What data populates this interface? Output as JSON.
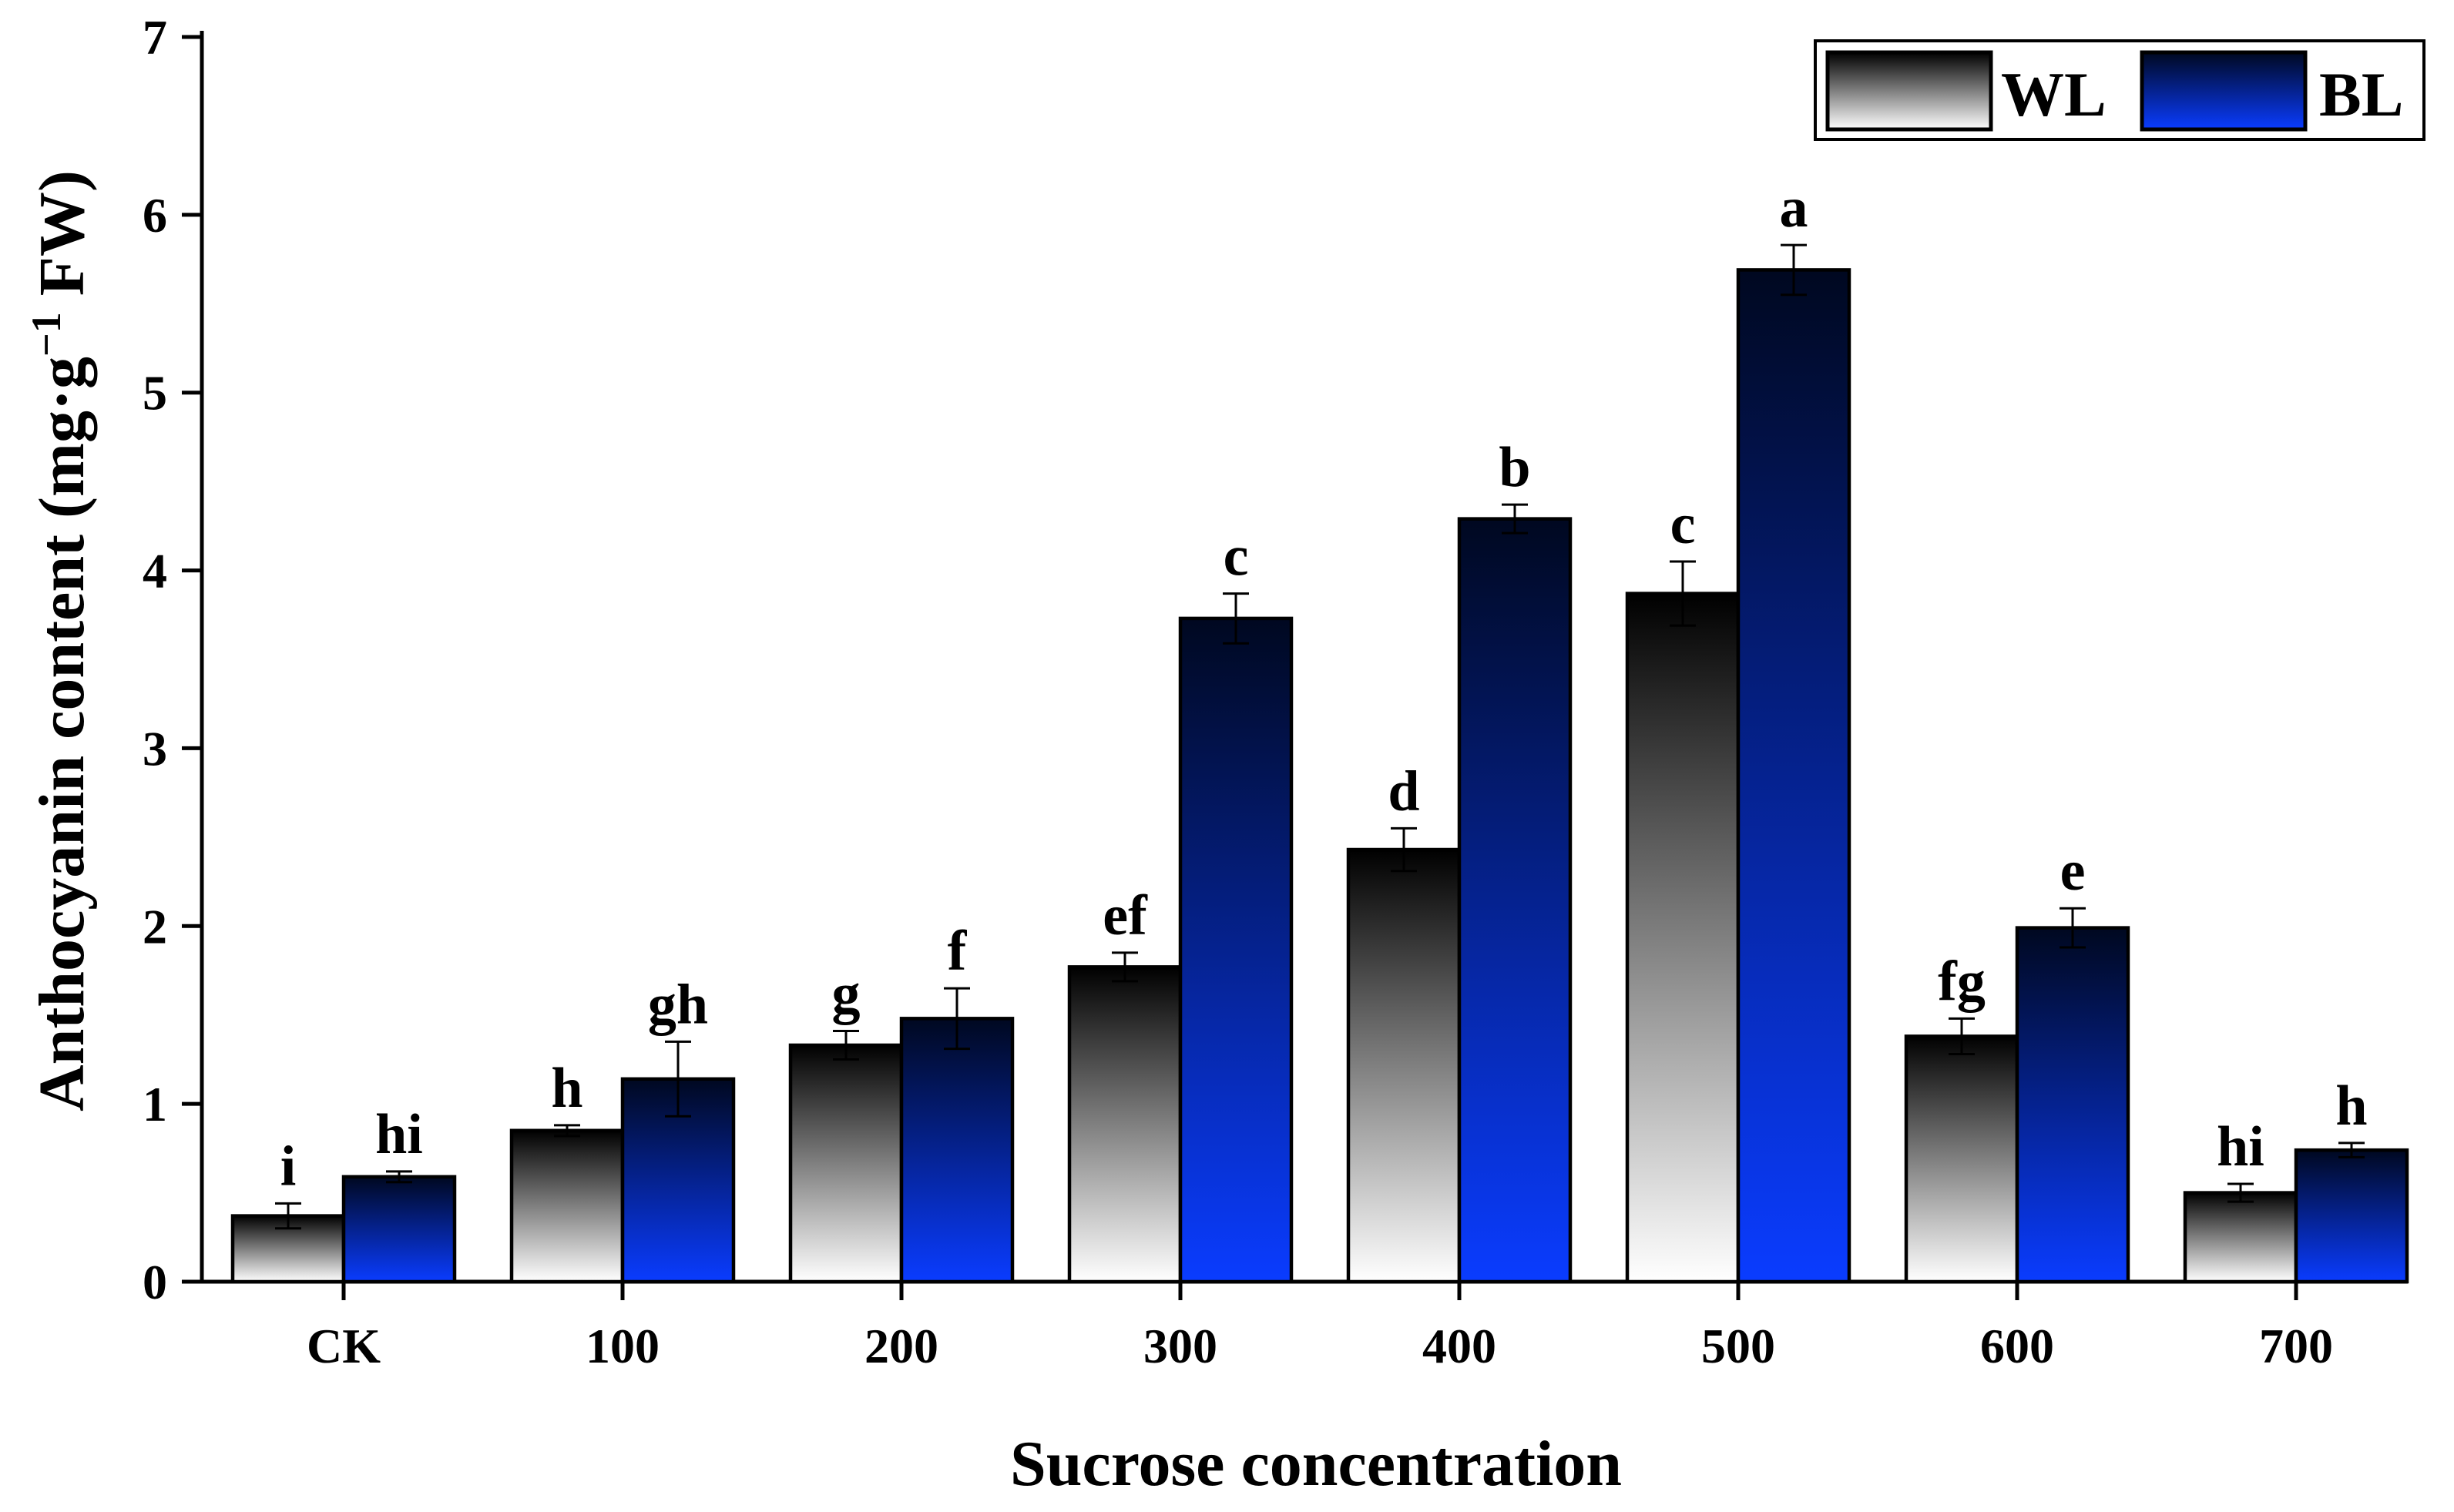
{
  "chart_data": {
    "type": "bar",
    "title": "",
    "xlabel": "Sucrose concentration",
    "ylabel": {
      "main": "Anthocyanin content (mg·g",
      "sup": "−1",
      "tail": " FW)"
    },
    "ylim": [
      0,
      7
    ],
    "yticks": [
      "0",
      "1",
      "2",
      "3",
      "4",
      "5",
      "6",
      "7"
    ],
    "categories": [
      "CK",
      "100",
      "200",
      "300",
      "400",
      "500",
      "600",
      "700"
    ],
    "legend_position": "top-right",
    "series": [
      {
        "name": "WL",
        "color_top": "#000000",
        "color_bottom": "#ffffff",
        "values": [
          0.37,
          0.85,
          1.33,
          1.77,
          2.43,
          3.87,
          1.38,
          0.5
        ],
        "errors": [
          0.07,
          0.03,
          0.08,
          0.08,
          0.12,
          0.18,
          0.1,
          0.05
        ],
        "labels": [
          "i",
          "h",
          "g",
          "ef",
          "d",
          "c",
          "fg",
          "hi"
        ]
      },
      {
        "name": "BL",
        "color_top": "#000820",
        "color_bottom": "#0a3cff",
        "values": [
          0.59,
          1.14,
          1.48,
          3.73,
          4.29,
          5.69,
          1.99,
          0.74
        ],
        "errors": [
          0.03,
          0.21,
          0.17,
          0.14,
          0.08,
          0.14,
          0.11,
          0.04
        ],
        "labels": [
          "hi",
          "gh",
          "f",
          "c",
          "b",
          "a",
          "e",
          "h"
        ]
      }
    ]
  }
}
